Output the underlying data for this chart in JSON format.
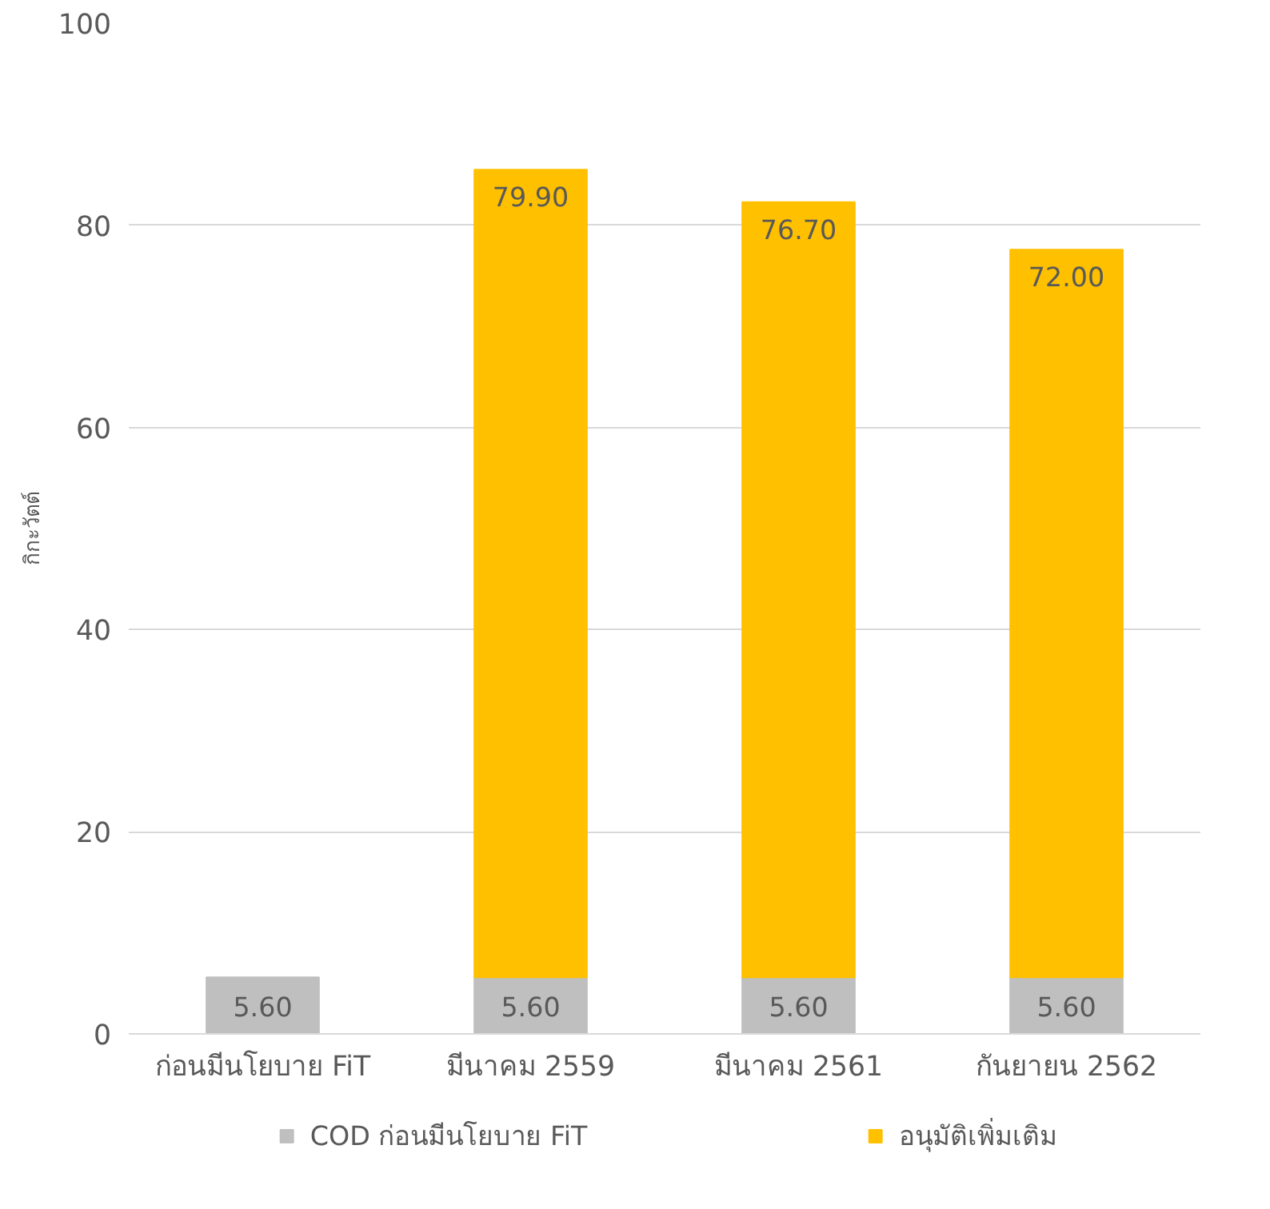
{
  "chart_data": {
    "type": "bar",
    "stacked": true,
    "ylabel": "กิกะวัตต์",
    "categories": [
      "ก่อนมีนโยบาย FiT",
      "มีนาคม 2559",
      "มีนาคม 2561",
      "กันยายน 2562"
    ],
    "series": [
      {
        "name": "COD ก่อนมีนโยบาย FiT",
        "color": "#bfbfbf",
        "values": [
          5.6,
          5.6,
          5.6,
          5.6
        ],
        "value_labels": [
          "5.60",
          "5.60",
          "5.60",
          "5.60"
        ]
      },
      {
        "name": "อนุมัติเพิ่มเติม",
        "color": "#ffc000",
        "values": [
          null,
          79.9,
          76.7,
          72.0
        ],
        "value_labels": [
          null,
          "79.90",
          "76.70",
          "72.00"
        ]
      }
    ],
    "ylim": [
      0,
      100
    ],
    "yticks": [
      0,
      20,
      40,
      60,
      80,
      100
    ],
    "grid": "y",
    "legend": "bottom"
  }
}
